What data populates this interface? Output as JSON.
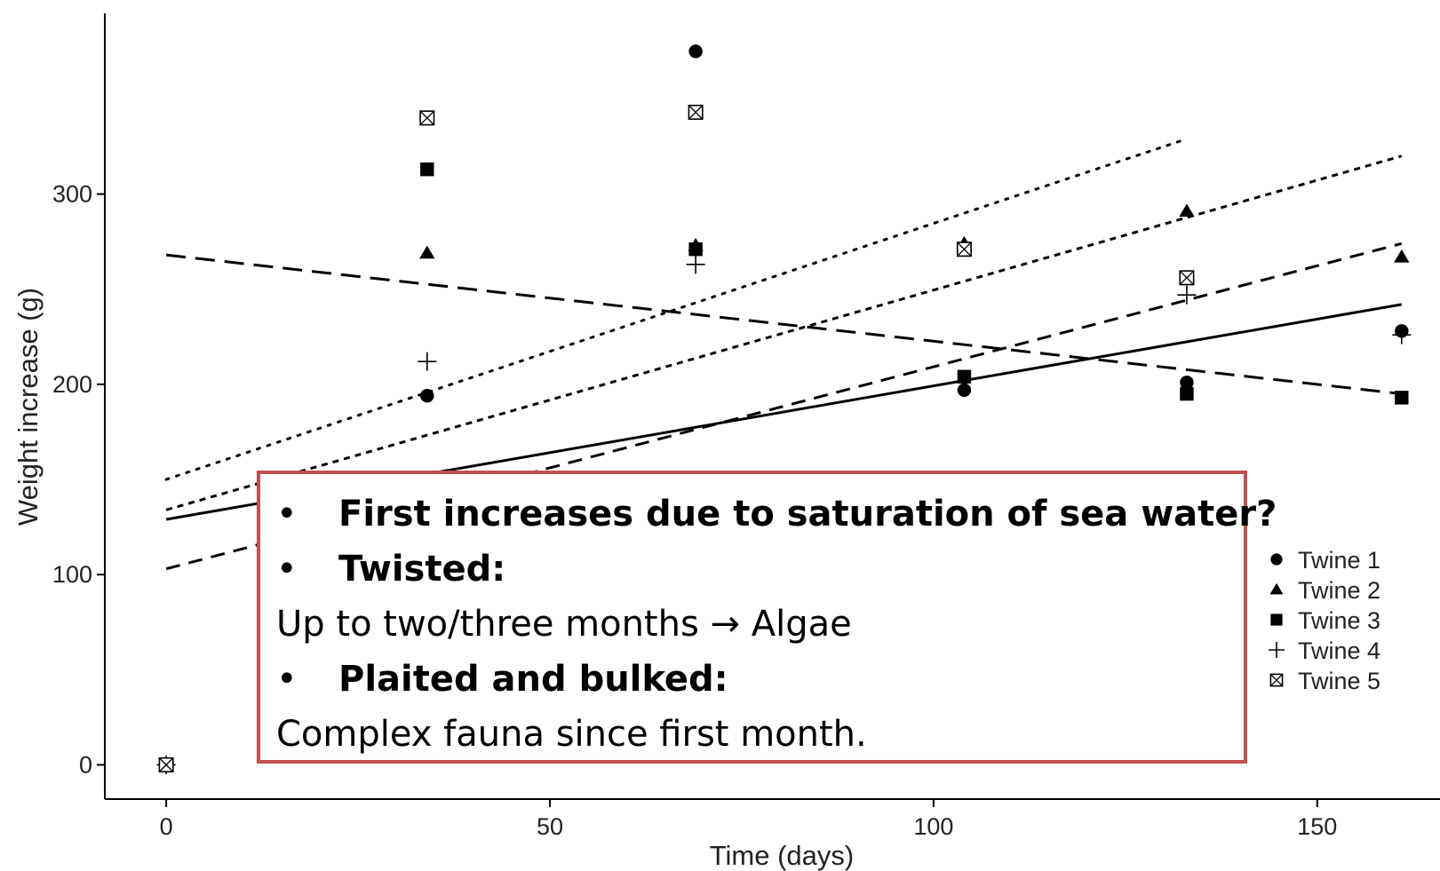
{
  "chart_data": {
    "type": "scatter",
    "xlabel": "Time (days)",
    "ylabel": "Weight increase (g)",
    "xlim": [
      -8,
      166
    ],
    "ylim": [
      -18,
      395
    ],
    "x_ticks": [
      0,
      50,
      100,
      150
    ],
    "y_ticks": [
      0,
      100,
      200,
      300
    ],
    "grid": false,
    "legend_position": "right",
    "series": [
      {
        "name": "Twine 1",
        "marker": "circle",
        "points": [
          [
            0,
            0
          ],
          [
            34,
            194
          ],
          [
            69,
            375
          ],
          [
            104,
            197
          ],
          [
            133,
            201
          ],
          [
            161,
            228
          ]
        ],
        "fit": {
          "style": "solid",
          "x": [
            0,
            161
          ],
          "y": [
            129,
            242
          ]
        }
      },
      {
        "name": "Twine 2",
        "marker": "triangle",
        "points": [
          [
            0,
            0
          ],
          [
            34,
            269
          ],
          [
            69,
            273
          ],
          [
            104,
            274
          ],
          [
            133,
            291
          ],
          [
            161,
            267
          ]
        ],
        "fit": {
          "style": "short-dash",
          "x": [
            0,
            161
          ],
          "y": [
            134,
            320
          ]
        }
      },
      {
        "name": "Twine 3",
        "marker": "square",
        "points": [
          [
            0,
            0
          ],
          [
            34,
            313
          ],
          [
            69,
            271
          ],
          [
            104,
            204
          ],
          [
            133,
            195
          ],
          [
            161,
            193
          ]
        ],
        "fit": {
          "style": "long-dash",
          "x": [
            0,
            161
          ],
          "y": [
            268,
            195
          ]
        }
      },
      {
        "name": "Twine 4",
        "marker": "plus",
        "points": [
          [
            0,
            0
          ],
          [
            34,
            212
          ],
          [
            69,
            263
          ],
          [
            133,
            247
          ],
          [
            161,
            226
          ]
        ],
        "fit": {
          "style": "medium-dash",
          "x": [
            0,
            161
          ],
          "y": [
            103,
            274
          ]
        }
      },
      {
        "name": "Twine 5",
        "marker": "boxcross",
        "points": [
          [
            0,
            0
          ],
          [
            34,
            340
          ],
          [
            69,
            343
          ],
          [
            104,
            271
          ],
          [
            133,
            256
          ]
        ],
        "fit": {
          "style": "dotted",
          "x": [
            0,
            133
          ],
          "y": [
            150,
            329
          ]
        }
      }
    ]
  },
  "callout": {
    "line1": "First increases due to saturation of sea water?",
    "line2": "Twisted:",
    "line3": "Up to two/three months → Algae",
    "line4": "Plaited and bulked:",
    "line5": "Complex fauna since first month.",
    "bullet": "•",
    "border_color": "#c0504d"
  }
}
